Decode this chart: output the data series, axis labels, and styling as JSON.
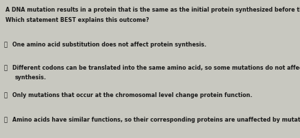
{
  "background_color": "#c8c8c0",
  "text_color": "#1a1a1a",
  "title_line1": "A DNA mutation results in a protein that is the same as the initial protein synthesized before the mutation.",
  "title_line2": "Which statement BEST explains this outcome?",
  "options": [
    {
      "label": "ⓐ",
      "line1": "One amino acid substitution does not affect protein synthesis.",
      "line2": ""
    },
    {
      "label": "ⓑ",
      "line1": "Different codons can be translated into the same amino acid, so some mutations do not affect protein",
      "line2": "synthesis."
    },
    {
      "label": "ⓒ",
      "line1": "Only mutations that occur at the chromosomal level change protein function.",
      "line2": ""
    },
    {
      "label": "ⓓ",
      "line1": "Amino acids have similar functions, so their corresponding proteins are unaffected by mutations.",
      "line2": ""
    }
  ],
  "title_fontsize": 5.8,
  "option_fontsize": 5.8,
  "figsize": [
    4.39,
    2.03
  ],
  "dpi": 100
}
